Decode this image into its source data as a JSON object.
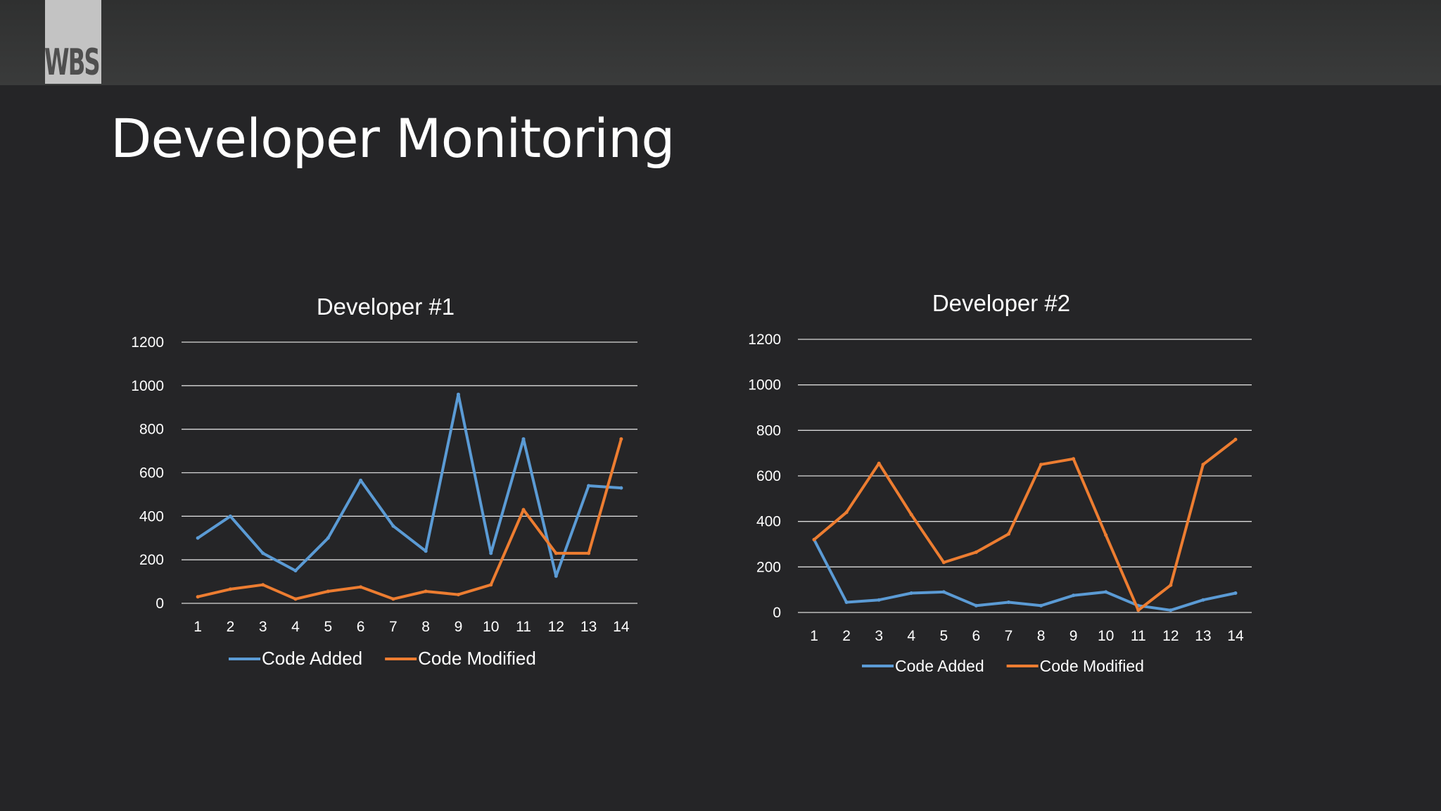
{
  "header": {
    "logo_text": "WBS"
  },
  "page": {
    "title": "Developer Monitoring"
  },
  "colors": {
    "background": "#252527",
    "header_bar": "#353636",
    "code_added": "#5b9bd5",
    "code_modified": "#ed7d31",
    "gridline": "#d9d9d9",
    "text": "#ffffff"
  },
  "chart_data": [
    {
      "type": "line",
      "title": "Developer #1",
      "categories": [
        "1",
        "2",
        "3",
        "4",
        "5",
        "6",
        "7",
        "8",
        "9",
        "10",
        "11",
        "12",
        "13",
        "14"
      ],
      "ylim": [
        0,
        1200
      ],
      "yticks": [
        "0",
        "200",
        "400",
        "600",
        "800",
        "1000",
        "1200"
      ],
      "grid": true,
      "legend_position": "bottom",
      "series": [
        {
          "name": "Code Added",
          "values": [
            300,
            400,
            230,
            150,
            300,
            565,
            355,
            240,
            960,
            230,
            755,
            125,
            540,
            530
          ]
        },
        {
          "name": "Code Modified",
          "values": [
            30,
            65,
            85,
            20,
            55,
            75,
            20,
            55,
            40,
            85,
            430,
            230,
            230,
            755
          ]
        }
      ]
    },
    {
      "type": "line",
      "title": "Developer #2",
      "categories": [
        "1",
        "2",
        "3",
        "4",
        "5",
        "6",
        "7",
        "8",
        "9",
        "10",
        "11",
        "12",
        "13",
        "14"
      ],
      "ylim": [
        0,
        1200
      ],
      "yticks": [
        "0",
        "200",
        "400",
        "600",
        "800",
        "1000",
        "1200"
      ],
      "grid": true,
      "legend_position": "bottom",
      "series": [
        {
          "name": "Code Added",
          "values": [
            320,
            45,
            55,
            85,
            90,
            30,
            45,
            30,
            75,
            90,
            30,
            10,
            55,
            85
          ]
        },
        {
          "name": "Code Modified",
          "values": [
            320,
            440,
            655,
            430,
            220,
            265,
            345,
            650,
            675,
            340,
            10,
            120,
            650,
            760
          ]
        }
      ]
    }
  ]
}
